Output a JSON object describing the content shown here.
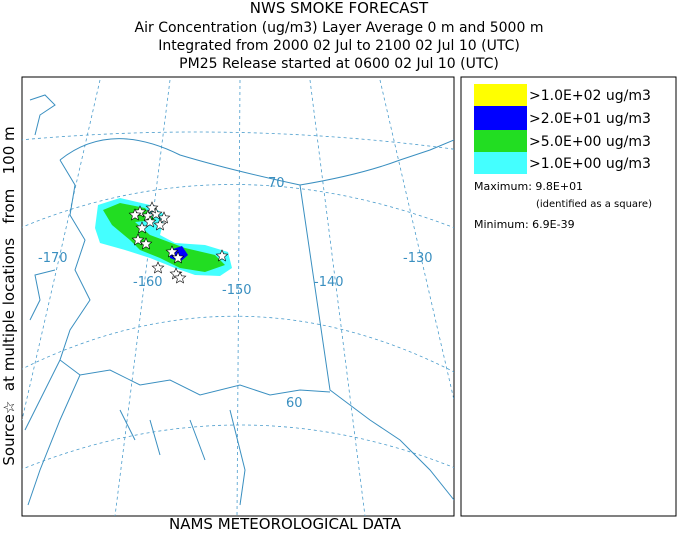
{
  "header": {
    "lines": [
      "NWS SMOKE FORECAST",
      "Air Concentration (ug/m3) Layer Average    0 m and  5000 m",
      "Integrated from 2000 02 Jul to 2100 02 Jul 10 (UTC)",
      "PM25 Release started at 0600 02 Jul 10 (UTC)"
    ]
  },
  "side_label": "Source☆  at multiple locations   from   100 m",
  "footer": "NAMS METEOROLOGICAL DATA",
  "legend": {
    "entries": [
      {
        "label": ">1.0E+02 ug/m3",
        "color": "#ffff00"
      },
      {
        "label": ">2.0E+01 ug/m3",
        "color": "#0000ff"
      },
      {
        "label": ">5.0E+00 ug/m3",
        "color": "#22dd22"
      },
      {
        "label": ">1.0E+00 ug/m3",
        "color": "#44ffff"
      }
    ]
  },
  "stats": {
    "maximum": "Maximum: 9.8E+01",
    "maximum_note": "(identified as a square)",
    "minimum": "Minimum: 6.9E-39"
  },
  "map": {
    "grid_labels": [
      "-170",
      "-160",
      "-150",
      "-140",
      "-130",
      "70",
      "60"
    ]
  }
}
